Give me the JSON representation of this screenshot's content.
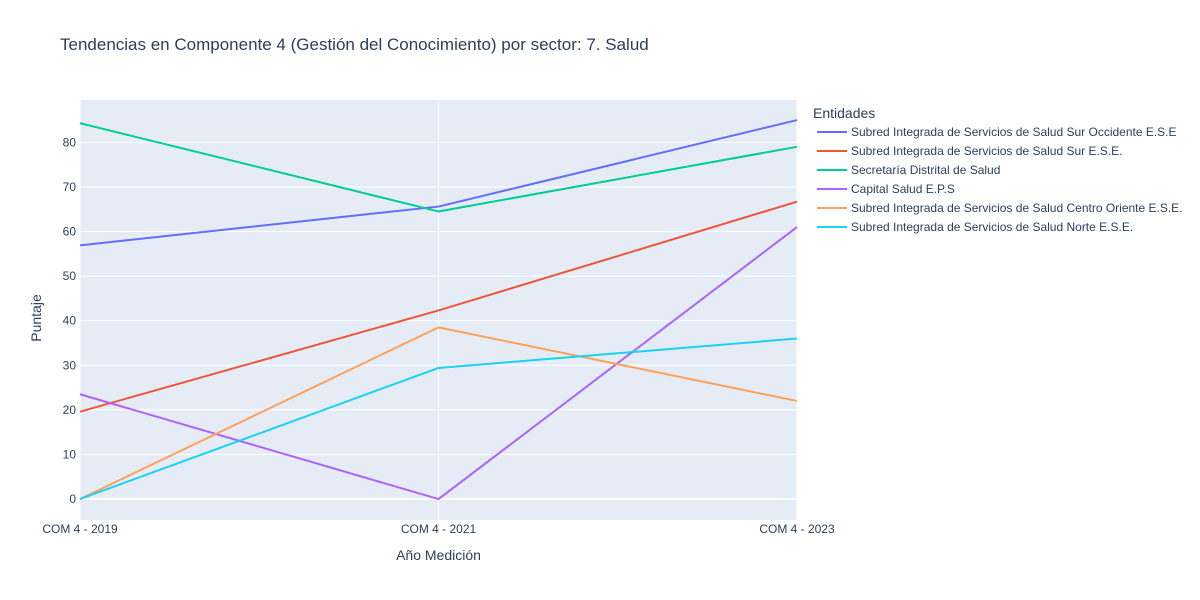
{
  "chart_data": {
    "type": "line",
    "title": "Tendencias en Componente 4 (Gestión del Conocimiento) por sector: 7. Salud",
    "xlabel": "Año Medición",
    "ylabel": "Puntaje",
    "categories": [
      "COM 4 - 2019",
      "COM 4 - 2021",
      "COM 4 - 2023"
    ],
    "ylim": [
      -4.7,
      89.5
    ],
    "yticks": [
      0,
      10,
      20,
      30,
      40,
      50,
      60,
      70,
      80
    ],
    "grid": true,
    "legend_title": "Entidades",
    "legend_position": "top-right",
    "plot_background": "#e5ecf6",
    "series": [
      {
        "name": "Subred Integrada de Servicios de Salud Sur Occidente E.S.E",
        "color": "#636efa",
        "values": [
          56.9,
          65.6,
          85.0
        ]
      },
      {
        "name": "Subred Integrada de Servicios de Salud Sur E.S.E.",
        "color": "#ef553b",
        "values": [
          19.6,
          42.3,
          66.7
        ]
      },
      {
        "name": "Secretaría Distrital de Salud",
        "color": "#00cc96",
        "values": [
          84.3,
          64.5,
          79.0
        ]
      },
      {
        "name": "Capital Salud E.P.S",
        "color": "#ab63fa",
        "values": [
          23.5,
          0.0,
          61.0
        ]
      },
      {
        "name": "Subred Integrada de Servicios de Salud Centro Oriente E.S.E.",
        "color": "#ffa15a",
        "values": [
          0.0,
          38.5,
          22.0
        ]
      },
      {
        "name": "Subred Integrada de Servicios de Salud Norte  E.S.E.",
        "color": "#19d3f3",
        "values": [
          0.0,
          29.4,
          36.0
        ]
      }
    ]
  }
}
